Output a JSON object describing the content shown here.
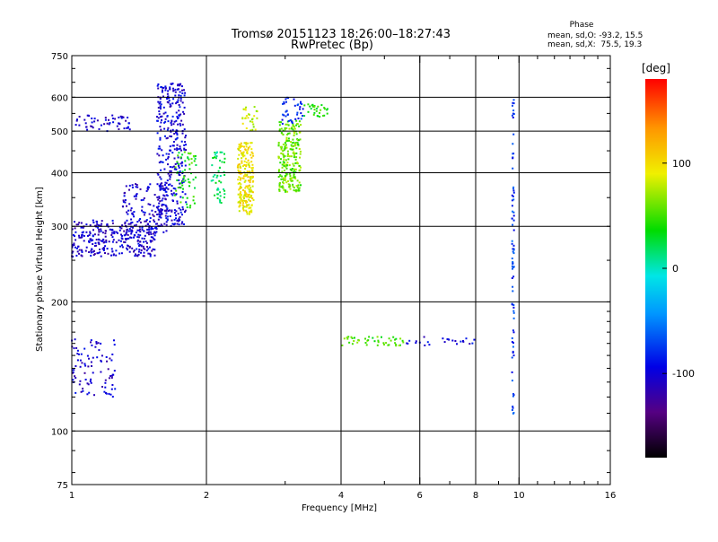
{
  "chart_data": {
    "type": "scatter",
    "title": "Tromsø 20151123 18:26:00–18:27:43",
    "subtitle": "RwPretec (Bp)",
    "xlabel": "Frequency [MHz]",
    "ylabel": "Stationary phase Virtual Height [km]",
    "x_scale": "log",
    "y_scale": "log",
    "xlim": [
      1,
      16
    ],
    "ylim": [
      75,
      750
    ],
    "x_ticks": [
      1,
      2,
      4,
      6,
      8,
      10,
      16
    ],
    "y_ticks": [
      75,
      100,
      200,
      300,
      400,
      500,
      600,
      750
    ],
    "grid": true,
    "stats": {
      "header": "Phase",
      "line_o": "mean, sd,O: -93.2, 15.5",
      "line_x": "mean, sd,X:  75.5, 19.3"
    },
    "colorbar": {
      "label": "[deg]",
      "range": [
        -180,
        180
      ],
      "ticks": [
        {
          "value": 100,
          "label": "100"
        },
        {
          "value": 0,
          "label": "0"
        },
        {
          "value": -100,
          "label": "-100"
        }
      ]
    },
    "series": [
      {
        "points_description_note_excluded": true,
        "clusters": [
          {
            "x_range": [
              1.0,
              1.55
            ],
            "y_range": [
              255,
              310
            ],
            "phase": -105,
            "count": 320
          },
          {
            "x_range": [
              1.3,
              1.65
            ],
            "y_range": [
              290,
              380
            ],
            "phase": -105,
            "count": 120
          },
          {
            "x_range": [
              1.55,
              1.8
            ],
            "y_range": [
              300,
              650
            ],
            "phase": -100,
            "count": 350
          },
          {
            "x_range": [
              1.0,
              1.35
            ],
            "y_range": [
              500,
              545
            ],
            "phase": -105,
            "count": 55
          },
          {
            "x_range": [
              1.7,
              1.9
            ],
            "y_range": [
              330,
              450
            ],
            "phase": 40,
            "count": 60
          },
          {
            "x_range": [
              2.05,
              2.2
            ],
            "y_range": [
              340,
              450
            ],
            "phase": 20,
            "count": 50
          },
          {
            "x_range": [
              2.35,
              2.55
            ],
            "y_range": [
              320,
              470
            ],
            "phase": 95,
            "count": 220
          },
          {
            "x_range": [
              2.4,
              2.6
            ],
            "y_range": [
              500,
              570
            ],
            "phase": 80,
            "count": 30
          },
          {
            "x_range": [
              2.9,
              3.25
            ],
            "y_range": [
              360,
              530
            ],
            "phase": 60,
            "count": 240
          },
          {
            "x_range": [
              2.95,
              3.3
            ],
            "y_range": [
              520,
              600
            ],
            "phase": -80,
            "count": 40
          },
          {
            "x_range": [
              3.3,
              3.75
            ],
            "y_range": [
              540,
              580
            ],
            "phase": 40,
            "count": 30
          },
          {
            "x_range": [
              1.0,
              1.25
            ],
            "y_range": [
              120,
              165
            ],
            "phase": -105,
            "count": 90
          },
          {
            "x_range": [
              4.0,
              5.6
            ],
            "y_range": [
              158,
              166
            ],
            "phase": 50,
            "count": 45
          },
          {
            "x_range": [
              5.6,
              8.5
            ],
            "y_range": [
              158,
              166
            ],
            "phase": -100,
            "count": 25
          },
          {
            "x_range": [
              9.65,
              9.75
            ],
            "y_range": [
              105,
              660
            ],
            "phase": -75,
            "count": 80
          }
        ]
      }
    ]
  }
}
